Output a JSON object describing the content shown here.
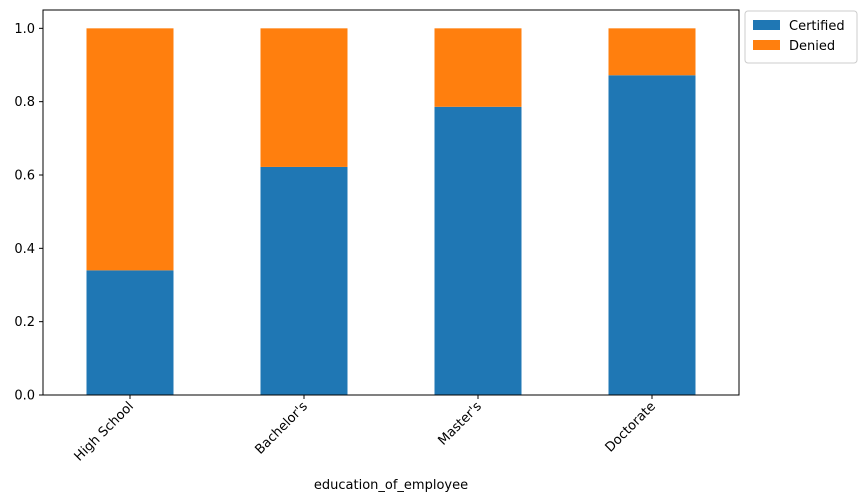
{
  "chart_data": {
    "type": "bar",
    "stacked": true,
    "title": "",
    "xlabel": "education_of_employee",
    "ylabel": "",
    "categories": [
      "High School",
      "Bachelor's",
      "Master's",
      "Doctorate"
    ],
    "series": [
      {
        "name": "Certified",
        "color": "#1f77b4",
        "values": [
          0.34,
          0.622,
          0.786,
          0.872
        ]
      },
      {
        "name": "Denied",
        "color": "#ff7f0e",
        "values": [
          0.66,
          0.378,
          0.214,
          0.128
        ]
      }
    ],
    "ylim": [
      0,
      1.05
    ],
    "yticks": [
      "0.0",
      "0.2",
      "0.4",
      "0.6",
      "0.8",
      "1.0"
    ],
    "grid": false,
    "legend_position": "outside top-right",
    "xtick_rotation": 45
  }
}
